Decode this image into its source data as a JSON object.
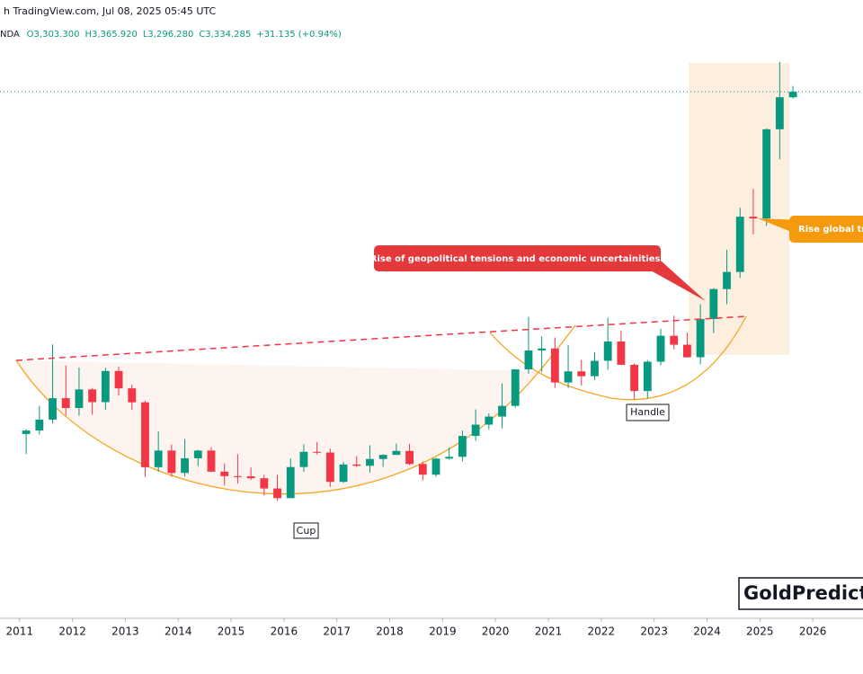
{
  "chart_data": {
    "type": "candlestick",
    "title": "h TradingView.com, Jul 08, 2025 05:45 UTC",
    "symbol": "NDA",
    "ohlc": [
      "O3,303.300",
      "H3,365.920",
      "L3,296.280",
      "C3,334.285",
      "+31.135 (+0.94%)"
    ],
    "annotations": [
      "Rise of geopolitical tensions and economic uncertainities.",
      "Rise global tra",
      "Cup",
      "Handle",
      "GoldPredicto"
    ],
    "up_color": "#089981",
    "down_color": "#f23645",
    "xlim": [
      2010.63,
      2026.95
    ],
    "ylim": [
      389,
      3847
    ],
    "xticks": [
      2011,
      2012,
      2013,
      2014,
      2015,
      2016,
      2017,
      2018,
      2019,
      2020,
      2021,
      2022,
      2023,
      2024,
      2025,
      2026
    ],
    "x": [
      2011.125,
      2011.375,
      2011.625,
      2011.875,
      2012.125,
      2012.375,
      2012.625,
      2012.875,
      2013.125,
      2013.375,
      2013.625,
      2013.875,
      2014.125,
      2014.375,
      2014.625,
      2014.875,
      2015.125,
      2015.375,
      2015.625,
      2015.875,
      2016.125,
      2016.375,
      2016.625,
      2016.875,
      2017.125,
      2017.375,
      2017.625,
      2017.875,
      2018.125,
      2018.375,
      2018.625,
      2018.875,
      2019.125,
      2019.375,
      2019.625,
      2019.875,
      2020.125,
      2020.375,
      2020.625,
      2020.875,
      2021.125,
      2021.375,
      2021.625,
      2021.875,
      2022.125,
      2022.375,
      2022.625,
      2022.875,
      2023.125,
      2023.375,
      2023.625,
      2023.875,
      2024.125,
      2024.375,
      2024.625,
      2024.875,
      2025.125,
      2025.375,
      2025.625
    ],
    "open": [
      1420,
      1439,
      1500,
      1620,
      1565,
      1669,
      1598,
      1772,
      1675,
      1597,
      1234,
      1327,
      1202,
      1284,
      1327,
      1209,
      1184,
      1183,
      1172,
      1115,
      1061,
      1235,
      1320,
      1316,
      1152,
      1249,
      1242,
      1280,
      1303,
      1325,
      1252,
      1192,
      1282,
      1292,
      1409,
      1472,
      1517,
      1577,
      1781,
      1887,
      1898,
      1708,
      1770,
      1743,
      1829,
      1937,
      1807,
      1660,
      1824,
      1969,
      1919,
      1849,
      2063,
      2230,
      2326,
      2635,
      2625,
      3124,
      3303
    ],
    "high": [
      1447,
      1577,
      1921,
      1803,
      1791,
      1677,
      1790,
      1796,
      1697,
      1605,
      1434,
      1361,
      1392,
      1332,
      1345,
      1255,
      1307,
      1232,
      1191,
      1191,
      1283,
      1362,
      1375,
      1338,
      1263,
      1296,
      1357,
      1306,
      1366,
      1365,
      1265,
      1287,
      1346,
      1439,
      1557,
      1535,
      1703,
      1765,
      2075,
      1966,
      1959,
      1916,
      1834,
      1877,
      2070,
      1998,
      1814,
      1833,
      2009,
      2081,
      1987,
      2146,
      2236,
      2450,
      2685,
      2790,
      3128,
      3500,
      3366
    ],
    "low": [
      1308,
      1418,
      1478,
      1523,
      1522,
      1527,
      1554,
      1635,
      1555,
      1180,
      1208,
      1180,
      1182,
      1240,
      1206,
      1131,
      1142,
      1162,
      1077,
      1046,
      1061,
      1208,
      1306,
      1124,
      1146,
      1236,
      1204,
      1236,
      1302,
      1246,
      1160,
      1180,
      1276,
      1266,
      1382,
      1445,
      1451,
      1567,
      1757,
      1765,
      1677,
      1677,
      1690,
      1722,
      1780,
      1805,
      1614,
      1617,
      1804,
      1893,
      1846,
      1810,
      1984,
      2146,
      2293,
      2536,
      2584,
      2957,
      3296
    ],
    "close": [
      1439,
      1500,
      1620,
      1565,
      1669,
      1598,
      1772,
      1675,
      1597,
      1234,
      1327,
      1202,
      1284,
      1327,
      1209,
      1184,
      1183,
      1172,
      1115,
      1061,
      1235,
      1320,
      1316,
      1152,
      1249,
      1242,
      1280,
      1303,
      1325,
      1252,
      1192,
      1282,
      1292,
      1409,
      1472,
      1517,
      1577,
      1781,
      1887,
      1898,
      1708,
      1770,
      1743,
      1829,
      1937,
      1807,
      1660,
      1824,
      1969,
      1919,
      1849,
      2063,
      2230,
      2326,
      2635,
      2625,
      3124,
      3303,
      3334
    ]
  }
}
